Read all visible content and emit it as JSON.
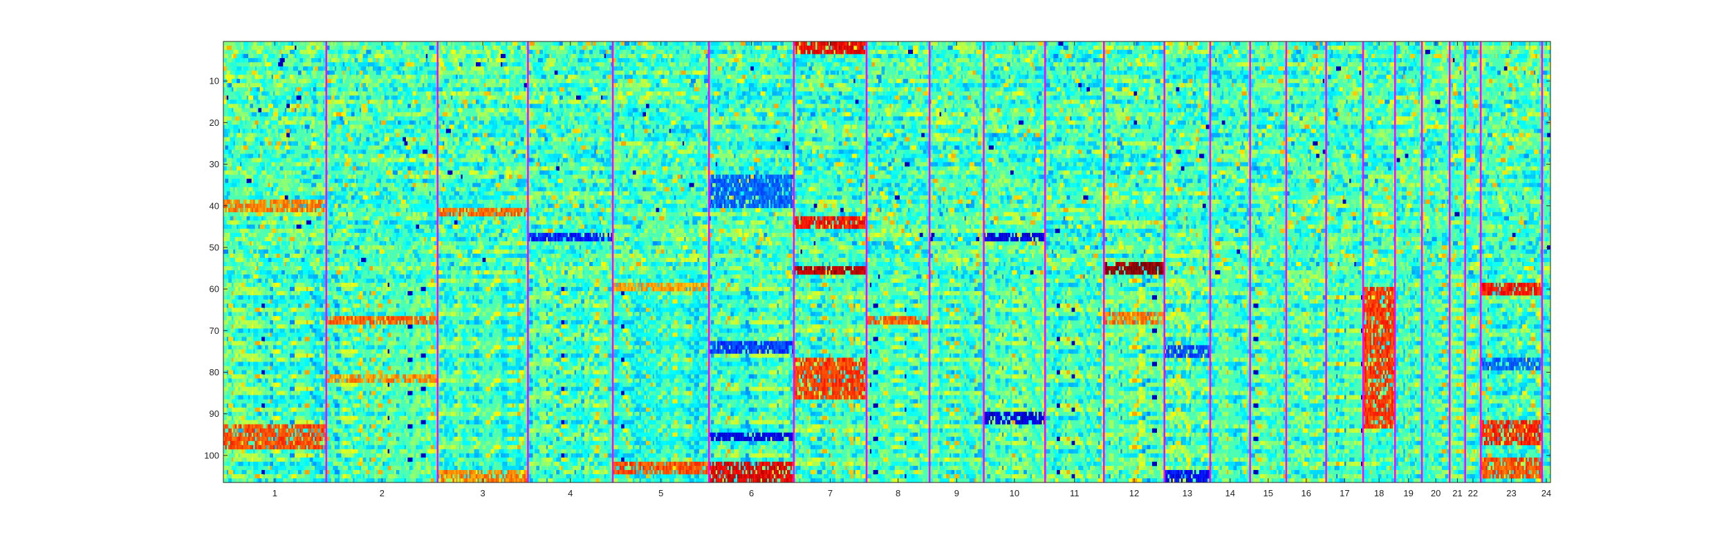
{
  "chart_data": {
    "type": "heatmap",
    "title": "",
    "xlabel": "",
    "ylabel": "",
    "colormap": "jet",
    "colormap_stops": [
      "#00008f",
      "#0000ff",
      "#0080ff",
      "#00ffff",
      "#80ff80",
      "#ffff00",
      "#ff8000",
      "#ff0000",
      "#800000"
    ],
    "row_count": 106,
    "ylim": [
      1,
      106
    ],
    "y_ticks": [
      10,
      20,
      30,
      40,
      50,
      60,
      70,
      80,
      90,
      100
    ],
    "separator_color": "#ff00ff",
    "groups": [
      {
        "label": "1",
        "width": 24.5
      },
      {
        "label": "2",
        "width": 26.5
      },
      {
        "label": "3",
        "width": 21.5
      },
      {
        "label": "4",
        "width": 20.2
      },
      {
        "label": "5",
        "width": 22.9
      },
      {
        "label": "6",
        "width": 20.2
      },
      {
        "label": "7",
        "width": 17.3
      },
      {
        "label": "8",
        "width": 15
      },
      {
        "label": "9",
        "width": 12.9
      },
      {
        "label": "10",
        "width": 14.6
      },
      {
        "label": "11",
        "width": 14
      },
      {
        "label": "12",
        "width": 14.4
      },
      {
        "label": "13",
        "width": 10.9
      },
      {
        "label": "14",
        "width": 9.5
      },
      {
        "label": "15",
        "width": 8.6
      },
      {
        "label": "16",
        "width": 9.5
      },
      {
        "label": "17",
        "width": 8.8
      },
      {
        "label": "18",
        "width": 7.6
      },
      {
        "label": "19",
        "width": 6.4
      },
      {
        "label": "20",
        "width": 6.6
      },
      {
        "label": "21",
        "width": 3.7
      },
      {
        "label": "22",
        "width": 3.7
      },
      {
        "label": "23",
        "width": 14.6
      },
      {
        "label": "24",
        "width": 2
      }
    ],
    "hot_spots": [
      {
        "group": "1",
        "rows": [
          93,
          98
        ],
        "value": 0.8
      },
      {
        "group": "1",
        "rows": [
          39,
          41
        ],
        "value": 0.75
      },
      {
        "group": "2",
        "rows": [
          67,
          68
        ],
        "value": 0.78
      },
      {
        "group": "2",
        "rows": [
          81,
          82
        ],
        "value": 0.74
      },
      {
        "group": "3",
        "rows": [
          41,
          42
        ],
        "value": 0.78
      },
      {
        "group": "3",
        "rows": [
          104,
          106
        ],
        "value": 0.75
      },
      {
        "group": "4",
        "rows": [
          47,
          48
        ],
        "value": 0.15
      },
      {
        "group": "5",
        "rows": [
          102,
          104
        ],
        "value": 0.8
      },
      {
        "group": "5",
        "rows": [
          59,
          60
        ],
        "value": 0.72
      },
      {
        "group": "6",
        "rows": [
          102,
          106
        ],
        "value": 0.9
      },
      {
        "group": "6",
        "rows": [
          95,
          96
        ],
        "value": 0.1
      },
      {
        "group": "6",
        "rows": [
          33,
          40
        ],
        "value": 0.22
      },
      {
        "group": "6",
        "rows": [
          73,
          75
        ],
        "value": 0.18
      },
      {
        "group": "7",
        "rows": [
          1,
          3
        ],
        "value": 0.88
      },
      {
        "group": "7",
        "rows": [
          43,
          45
        ],
        "value": 0.86
      },
      {
        "group": "7",
        "rows": [
          55,
          56
        ],
        "value": 0.95
      },
      {
        "group": "7",
        "rows": [
          77,
          86
        ],
        "value": 0.82
      },
      {
        "group": "8",
        "rows": [
          67,
          68
        ],
        "value": 0.78
      },
      {
        "group": "10",
        "rows": [
          90,
          92
        ],
        "value": 0.08
      },
      {
        "group": "10",
        "rows": [
          47,
          48
        ],
        "value": 0.1
      },
      {
        "group": "12",
        "rows": [
          54,
          56
        ],
        "value": 0.98
      },
      {
        "group": "12",
        "rows": [
          66,
          68
        ],
        "value": 0.76
      },
      {
        "group": "13",
        "rows": [
          74,
          76
        ],
        "value": 0.2
      },
      {
        "group": "13",
        "rows": [
          104,
          106
        ],
        "value": 0.12
      },
      {
        "group": "18",
        "rows": [
          60,
          93
        ],
        "value": 0.82
      },
      {
        "group": "23",
        "rows": [
          59,
          61
        ],
        "value": 0.86
      },
      {
        "group": "23",
        "rows": [
          92,
          97
        ],
        "value": 0.84
      },
      {
        "group": "23",
        "rows": [
          101,
          105
        ],
        "value": 0.8
      },
      {
        "group": "23",
        "rows": [
          77,
          79
        ],
        "value": 0.22
      }
    ]
  }
}
